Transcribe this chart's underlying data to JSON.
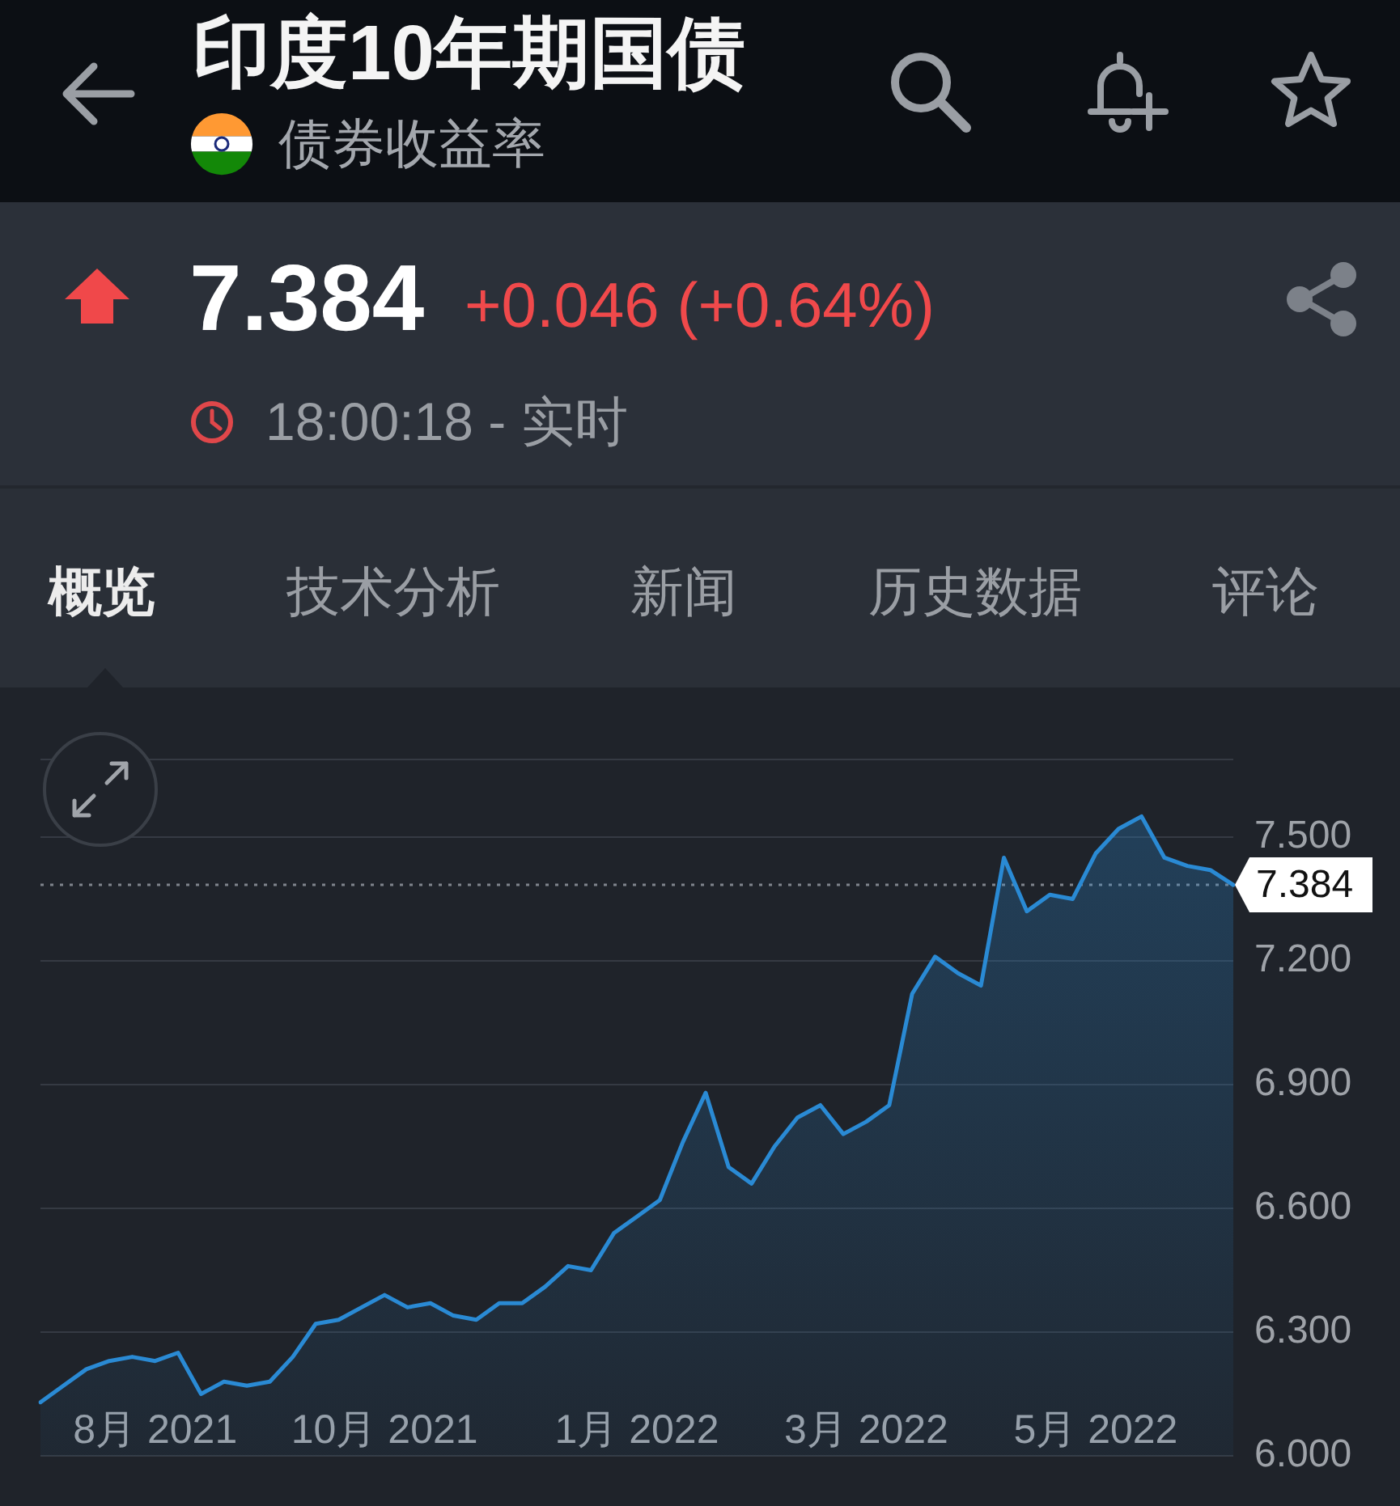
{
  "chart_data": {
    "type": "area",
    "title": "印度10年期国债",
    "subtitle": "债券收益率",
    "annotations": [
      "7.384",
      "+0.046 (+0.64%)",
      "18:00:18 - 实时",
      "概览",
      "技术分析",
      "新闻",
      "历史数据",
      "评论"
    ],
    "categories": [
      null,
      null,
      null,
      null,
      null,
      "8月 2021",
      null,
      null,
      null,
      null,
      null,
      null,
      null,
      null,
      null,
      "10月 2021",
      null,
      null,
      null,
      null,
      null,
      null,
      null,
      null,
      null,
      null,
      "1月 2022",
      null,
      null,
      null,
      null,
      null,
      null,
      null,
      null,
      null,
      "3月 2022",
      null,
      null,
      null,
      null,
      null,
      null,
      null,
      null,
      null,
      "5月 2022",
      null,
      null,
      null,
      null,
      null,
      null
    ],
    "values": [
      6.13,
      6.17,
      6.21,
      6.23,
      6.24,
      6.23,
      6.25,
      6.15,
      6.18,
      6.17,
      6.18,
      6.24,
      6.32,
      6.33,
      6.36,
      6.39,
      6.36,
      6.37,
      6.34,
      6.33,
      6.37,
      6.37,
      6.41,
      6.46,
      6.45,
      6.54,
      6.58,
      6.62,
      6.76,
      6.88,
      6.7,
      6.66,
      6.75,
      6.82,
      6.85,
      6.78,
      6.81,
      6.85,
      7.12,
      7.21,
      7.17,
      7.14,
      7.45,
      7.32,
      7.36,
      7.35,
      7.46,
      7.52,
      7.55,
      7.45,
      7.43,
      7.42,
      7.384
    ],
    "color": "#2a8ad4",
    "ylim": [
      6,
      7.69
    ],
    "yticks": [
      {
        "value": 6,
        "label": "6.000"
      },
      {
        "value": 6.3,
        "label": "6.300"
      },
      {
        "value": 6.6,
        "label": "6.600"
      },
      {
        "value": 6.9,
        "label": "6.900"
      },
      {
        "value": 7.2,
        "label": "7.200"
      },
      {
        "value": 7.5,
        "label": "7.500"
      }
    ],
    "grid": "y",
    "ref_lines": [
      {
        "axis": "y",
        "value": 7.384,
        "label": "7.384",
        "color": "#80858d",
        "line_style": "dotted"
      }
    ]
  }
}
